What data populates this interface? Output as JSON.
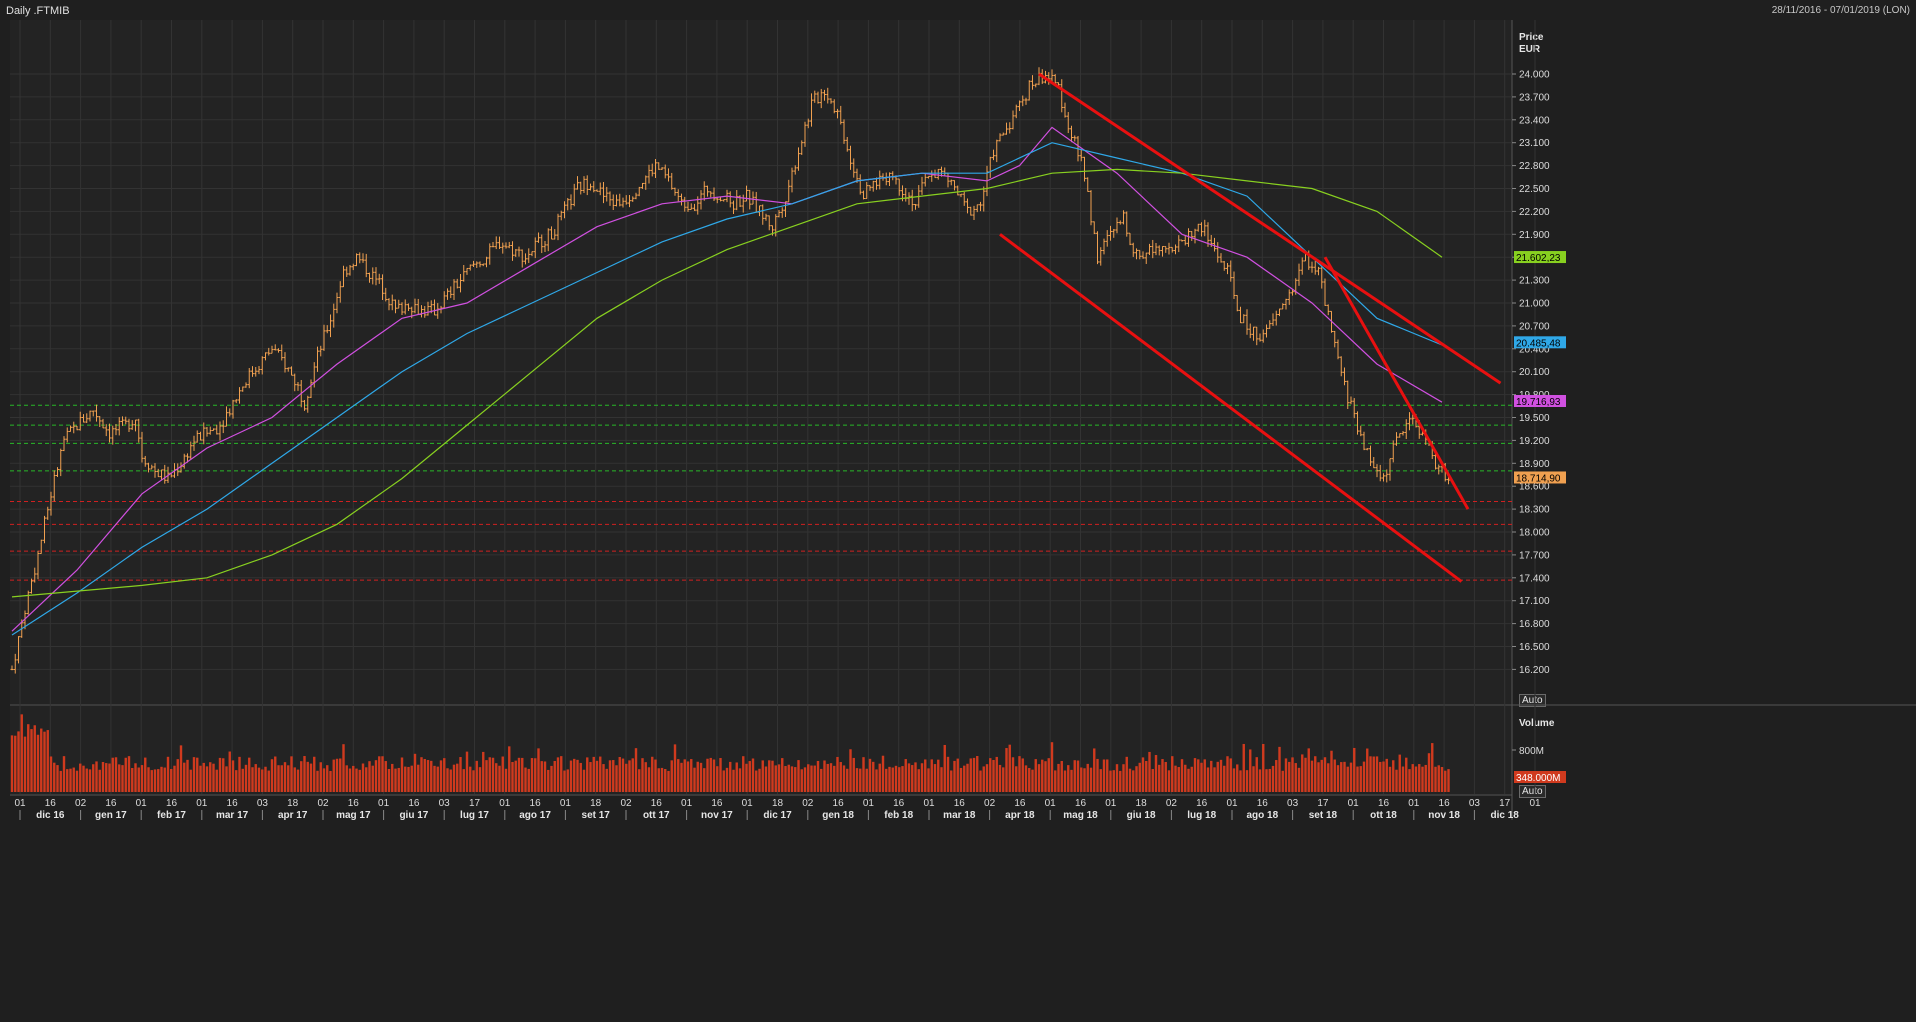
{
  "header": {
    "title": "Daily .FTMIB",
    "range": "28/11/2016 - 07/01/2019 (LON)"
  },
  "price_axis": {
    "title": "Price",
    "currency": "EUR",
    "auto_label": "Auto"
  },
  "volume_axis": {
    "title": "Volume",
    "auto_label": "Auto"
  },
  "colors": {
    "background": "#1f1f1f",
    "plot_background": "#232323",
    "grid": "#333333",
    "candle": "#f0a050",
    "volume": "#d03a1e",
    "ma_short": "#d050e0",
    "ma_medium": "#2fa8e8",
    "ma_long": "#88d020",
    "trendline": "#e81010",
    "support": "#28b828",
    "resistance": "#d02020"
  },
  "chart_data": {
    "type": "ohlc",
    "x_axis": {
      "day_ticks": [
        "01",
        "16",
        "02",
        "16",
        "01",
        "16",
        "01",
        "16",
        "03",
        "18",
        "02",
        "16",
        "01",
        "16",
        "03",
        "17",
        "01",
        "16",
        "01",
        "18",
        "02",
        "16",
        "01",
        "16",
        "01",
        "18",
        "02",
        "16",
        "01",
        "16",
        "01",
        "16",
        "02",
        "16",
        "01",
        "16",
        "01",
        "18",
        "02",
        "16",
        "01",
        "16",
        "03",
        "17",
        "01",
        "16",
        "01",
        "16",
        "03",
        "17",
        "01"
      ],
      "months": [
        "dic 16",
        "gen 17",
        "feb 17",
        "mar 17",
        "apr 17",
        "mag 17",
        "giu 17",
        "lug 17",
        "ago 17",
        "set 17",
        "ott 17",
        "nov 17",
        "dic 17",
        "gen 18",
        "feb 18",
        "mar 18",
        "apr 18",
        "mag 18",
        "giu 18",
        "lug 18",
        "ago 18",
        "set 18",
        "ott 18",
        "nov 18",
        "dic 18"
      ]
    },
    "y_axis": {
      "ticks": [
        "24.000",
        "23.700",
        "23.400",
        "23.100",
        "22.800",
        "22.500",
        "22.200",
        "21.900",
        "21.600",
        "21.300",
        "21.000",
        "20.700",
        "20.400",
        "20.100",
        "19.800",
        "19.500",
        "19.200",
        "18.900",
        "18.600",
        "18.300",
        "18.000",
        "17.700",
        "17.400",
        "17.100",
        "16.800",
        "16.500",
        "16.200"
      ],
      "ylim": [
        16100,
        24300
      ]
    },
    "price_path": [
      [
        0,
        16200
      ],
      [
        4,
        17000
      ],
      [
        8,
        17700
      ],
      [
        12,
        18500
      ],
      [
        16,
        19200
      ],
      [
        20,
        19400
      ],
      [
        25,
        19600
      ],
      [
        30,
        19300
      ],
      [
        35,
        19400
      ],
      [
        38,
        19500
      ],
      [
        40,
        19000
      ],
      [
        44,
        18800
      ],
      [
        48,
        18700
      ],
      [
        52,
        18900
      ],
      [
        56,
        19200
      ],
      [
        60,
        19300
      ],
      [
        64,
        19400
      ],
      [
        68,
        19700
      ],
      [
        72,
        20000
      ],
      [
        76,
        20200
      ],
      [
        80,
        20400
      ],
      [
        84,
        20200
      ],
      [
        88,
        19900
      ],
      [
        90,
        19700
      ],
      [
        94,
        20300
      ],
      [
        98,
        20800
      ],
      [
        102,
        21400
      ],
      [
        106,
        21600
      ],
      [
        110,
        21400
      ],
      [
        114,
        21200
      ],
      [
        118,
        20900
      ],
      [
        122,
        21000
      ],
      [
        126,
        20900
      ],
      [
        130,
        20900
      ],
      [
        134,
        21100
      ],
      [
        138,
        21300
      ],
      [
        142,
        21500
      ],
      [
        146,
        21600
      ],
      [
        150,
        21800
      ],
      [
        154,
        21700
      ],
      [
        158,
        21600
      ],
      [
        162,
        21800
      ],
      [
        166,
        21900
      ],
      [
        170,
        22200
      ],
      [
        174,
        22500
      ],
      [
        178,
        22600
      ],
      [
        182,
        22400
      ],
      [
        186,
        22300
      ],
      [
        190,
        22400
      ],
      [
        194,
        22600
      ],
      [
        198,
        22800
      ],
      [
        202,
        22600
      ],
      [
        206,
        22300
      ],
      [
        210,
        22300
      ],
      [
        214,
        22500
      ],
      [
        218,
        22400
      ],
      [
        222,
        22300
      ],
      [
        226,
        22400
      ],
      [
        230,
        22200
      ],
      [
        234,
        22000
      ],
      [
        238,
        22400
      ],
      [
        242,
        23000
      ],
      [
        246,
        23600
      ],
      [
        250,
        23800
      ],
      [
        254,
        23500
      ],
      [
        258,
        22900
      ],
      [
        262,
        22400
      ],
      [
        266,
        22600
      ],
      [
        270,
        22700
      ],
      [
        274,
        22500
      ],
      [
        278,
        22300
      ],
      [
        282,
        22700
      ],
      [
        286,
        22700
      ],
      [
        290,
        22500
      ],
      [
        294,
        22200
      ],
      [
        298,
        22300
      ],
      [
        302,
        23000
      ],
      [
        306,
        23300
      ],
      [
        310,
        23600
      ],
      [
        314,
        23900
      ],
      [
        318,
        24000
      ],
      [
        322,
        23800
      ],
      [
        326,
        23200
      ],
      [
        330,
        22700
      ],
      [
        334,
        21600
      ],
      [
        338,
        21900
      ],
      [
        342,
        22100
      ],
      [
        346,
        21600
      ],
      [
        350,
        21700
      ],
      [
        354,
        21800
      ],
      [
        358,
        21700
      ],
      [
        362,
        21900
      ],
      [
        366,
        22000
      ],
      [
        370,
        21700
      ],
      [
        374,
        21400
      ],
      [
        378,
        20800
      ],
      [
        382,
        20600
      ],
      [
        386,
        20600
      ],
      [
        390,
        20900
      ],
      [
        394,
        21200
      ],
      [
        398,
        21600
      ],
      [
        402,
        21400
      ],
      [
        406,
        20600
      ],
      [
        410,
        19900
      ],
      [
        414,
        19400
      ],
      [
        418,
        18900
      ],
      [
        422,
        18700
      ],
      [
        426,
        19200
      ],
      [
        430,
        19500
      ],
      [
        434,
        19300
      ],
      [
        438,
        18900
      ],
      [
        442,
        18700
      ]
    ],
    "series": [
      {
        "name": "MA short",
        "last_value": "19.716,93",
        "values": [
          [
            0,
            16700
          ],
          [
            20,
            17500
          ],
          [
            40,
            18500
          ],
          [
            60,
            19100
          ],
          [
            80,
            19500
          ],
          [
            100,
            20200
          ],
          [
            120,
            20800
          ],
          [
            140,
            21000
          ],
          [
            160,
            21500
          ],
          [
            180,
            22000
          ],
          [
            200,
            22300
          ],
          [
            220,
            22400
          ],
          [
            240,
            22300
          ],
          [
            260,
            22600
          ],
          [
            280,
            22700
          ],
          [
            300,
            22600
          ],
          [
            310,
            22800
          ],
          [
            320,
            23300
          ],
          [
            340,
            22700
          ],
          [
            360,
            21900
          ],
          [
            380,
            21600
          ],
          [
            400,
            21000
          ],
          [
            420,
            20200
          ],
          [
            440,
            19700
          ]
        ]
      },
      {
        "name": "MA medium",
        "last_value": "20.485,48",
        "values": [
          [
            0,
            16650
          ],
          [
            20,
            17200
          ],
          [
            40,
            17800
          ],
          [
            60,
            18300
          ],
          [
            80,
            18900
          ],
          [
            100,
            19500
          ],
          [
            120,
            20100
          ],
          [
            140,
            20600
          ],
          [
            160,
            21000
          ],
          [
            180,
            21400
          ],
          [
            200,
            21800
          ],
          [
            220,
            22100
          ],
          [
            240,
            22300
          ],
          [
            260,
            22600
          ],
          [
            280,
            22700
          ],
          [
            300,
            22700
          ],
          [
            320,
            23100
          ],
          [
            340,
            22900
          ],
          [
            360,
            22700
          ],
          [
            380,
            22400
          ],
          [
            400,
            21600
          ],
          [
            420,
            20800
          ],
          [
            440,
            20450
          ]
        ]
      },
      {
        "name": "MA long",
        "last_value": "21.602,23",
        "values": [
          [
            0,
            17150
          ],
          [
            40,
            17300
          ],
          [
            60,
            17400
          ],
          [
            80,
            17700
          ],
          [
            100,
            18100
          ],
          [
            120,
            18700
          ],
          [
            140,
            19400
          ],
          [
            160,
            20100
          ],
          [
            180,
            20800
          ],
          [
            200,
            21300
          ],
          [
            220,
            21700
          ],
          [
            240,
            22000
          ],
          [
            260,
            22300
          ],
          [
            280,
            22400
          ],
          [
            300,
            22500
          ],
          [
            320,
            22700
          ],
          [
            340,
            22750
          ],
          [
            360,
            22700
          ],
          [
            380,
            22600
          ],
          [
            400,
            22500
          ],
          [
            420,
            22200
          ],
          [
            440,
            21600
          ]
        ]
      }
    ],
    "last_price": "18.714,90",
    "volume_last": "348.000M",
    "volume_tick": "800M",
    "trendlines": [
      {
        "from": [
          316,
          24000
        ],
        "to": [
          458,
          19950
        ]
      },
      {
        "from": [
          304,
          21900
        ],
        "to": [
          446,
          17350
        ]
      },
      {
        "from": [
          404,
          21600
        ],
        "to": [
          448,
          18300
        ]
      }
    ],
    "support_levels": [
      19660,
      19400,
      19160,
      18800
    ],
    "resistance_levels": [
      18400,
      18100,
      17750,
      17370
    ]
  }
}
